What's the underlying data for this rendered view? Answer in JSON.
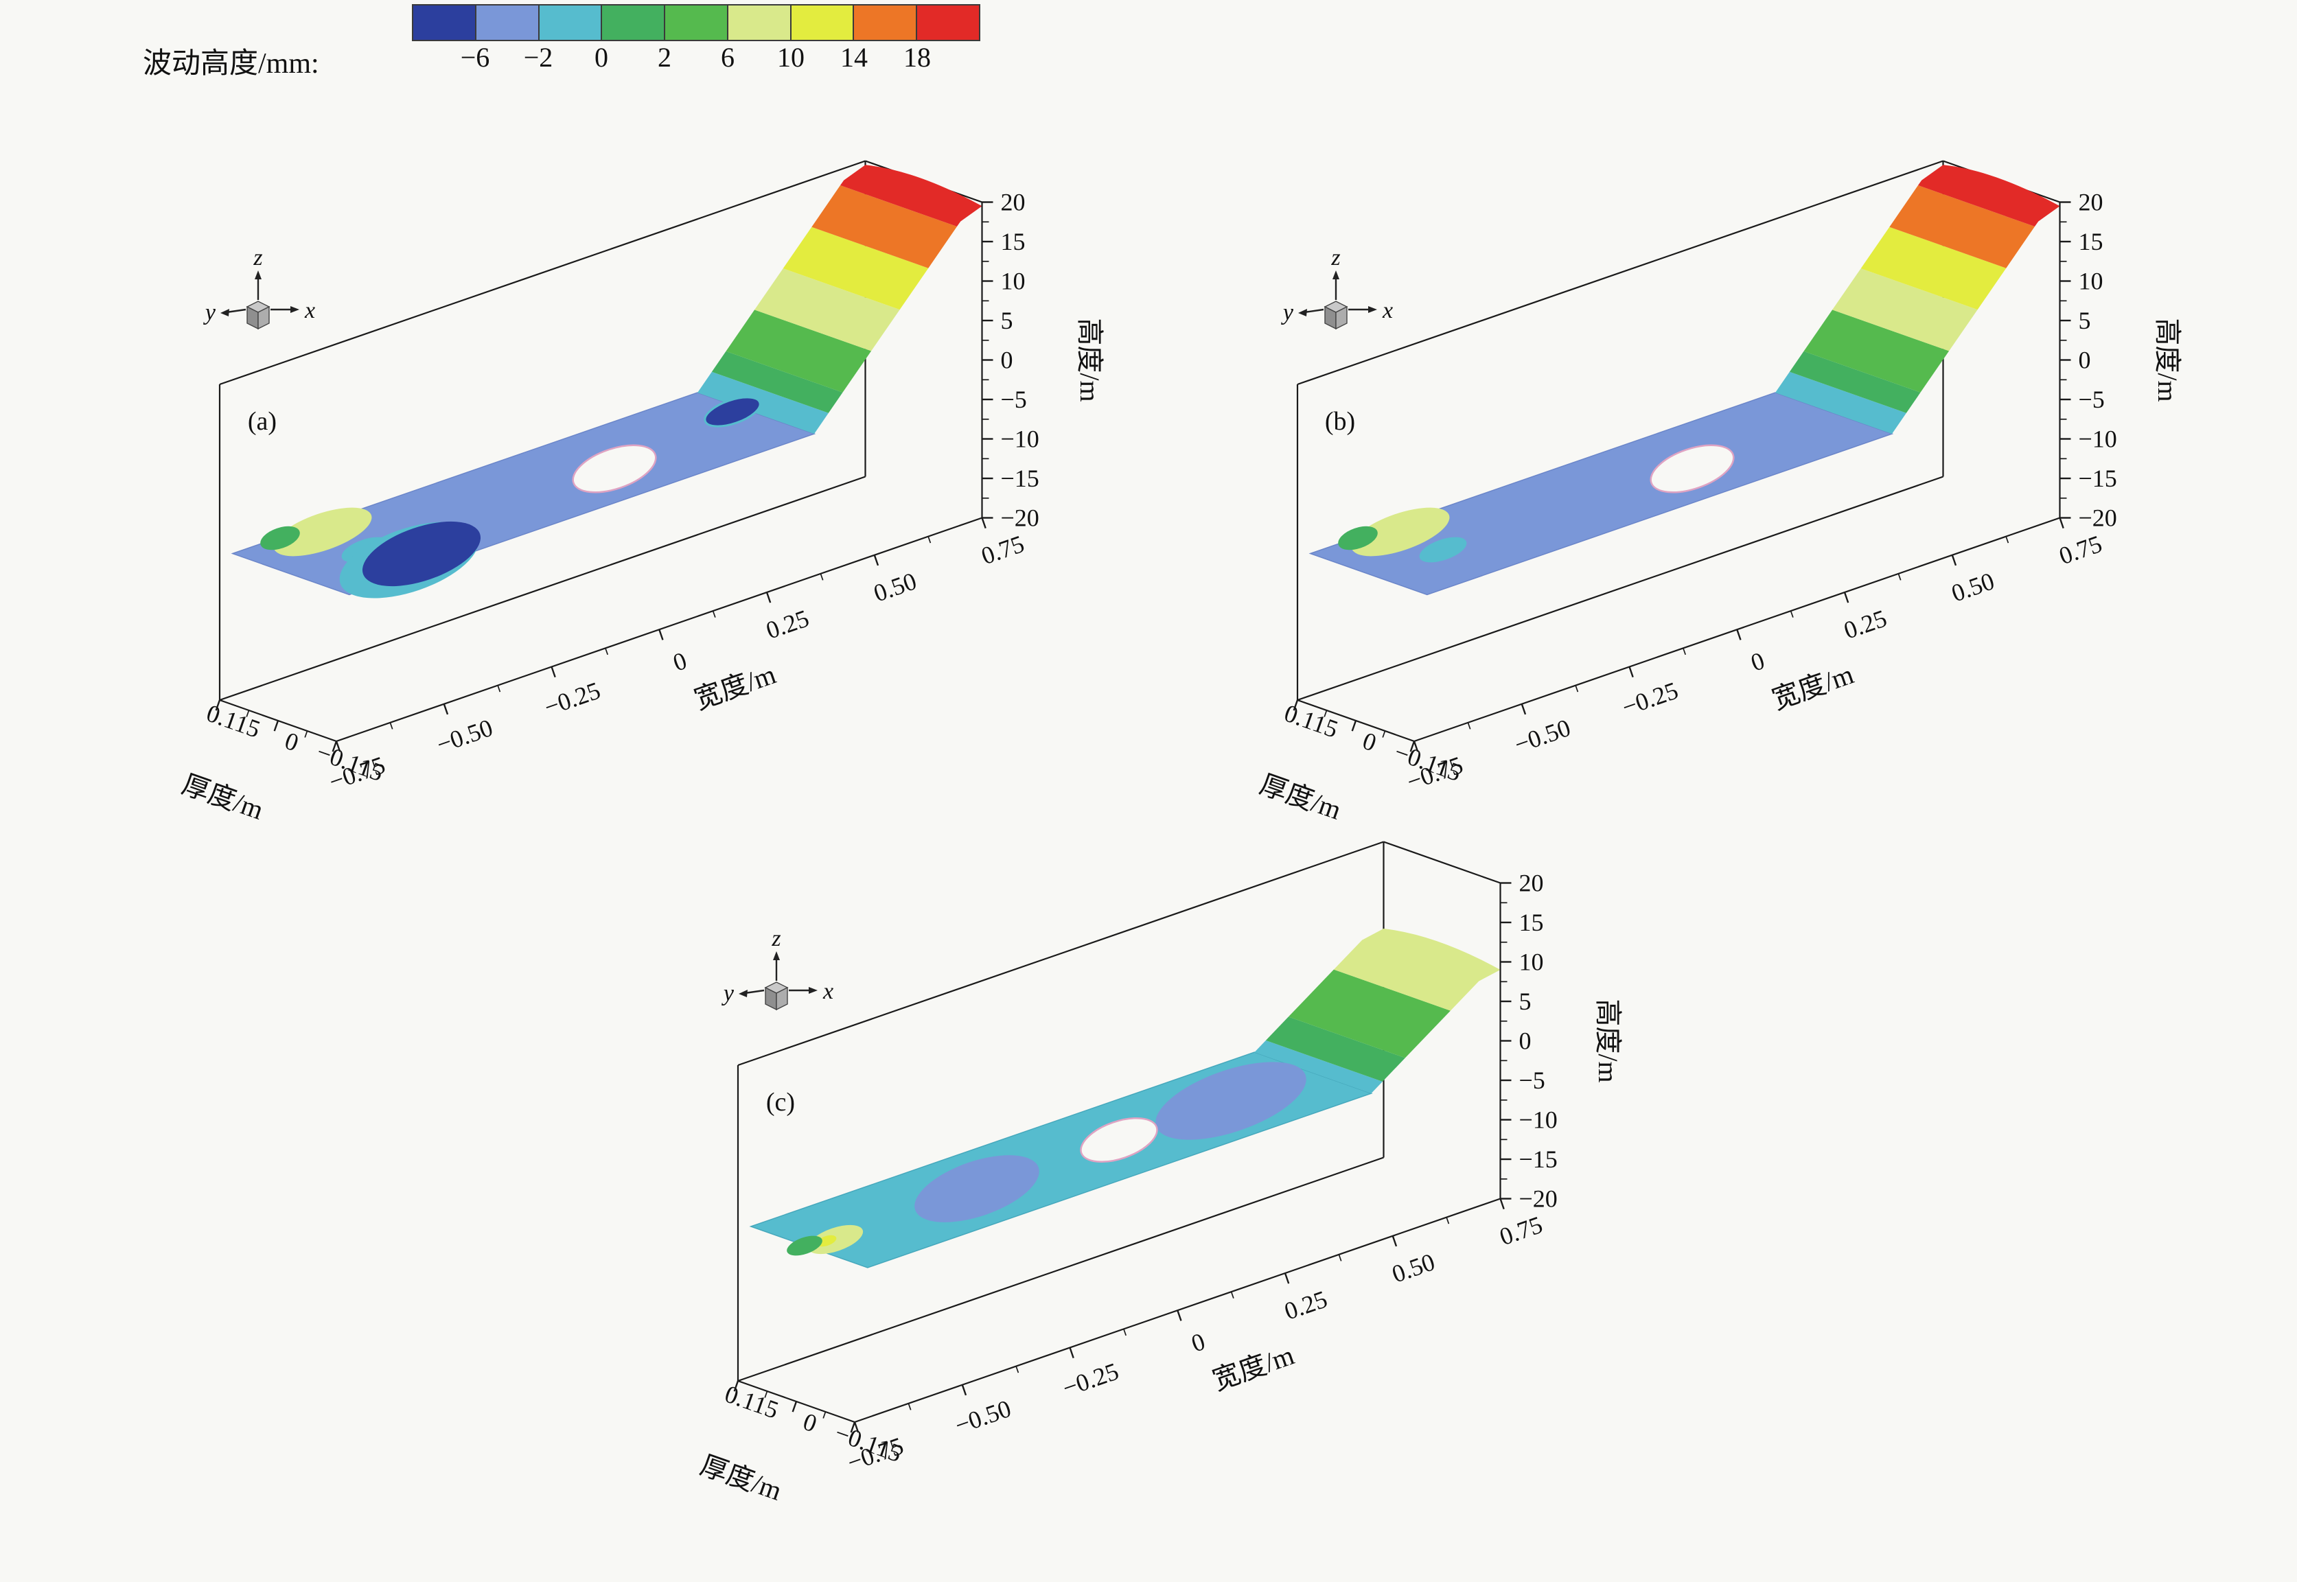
{
  "colorbar": {
    "label": "波动高度/mm:",
    "ticks": [
      "−6",
      "−2",
      "0",
      "2",
      "6",
      "10",
      "14",
      "18"
    ],
    "colors": [
      "#2c3f9e",
      "#7a97d8",
      "#56bcce",
      "#43b05f",
      "#55ba4e",
      "#d9e98b",
      "#e3ec3f",
      "#ed7626",
      "#e22a27"
    ]
  },
  "axes": {
    "x_label": "宽度/m",
    "x_ticks": [
      "−0.75",
      "−0.50",
      "−0.25",
      "0",
      "0.25",
      "0.50",
      "0.75"
    ],
    "y_label": "厚度/m",
    "y_ticks": [
      "0.115",
      "0",
      "−0.115"
    ],
    "z_label": "高度/m",
    "z_ticks": [
      "20",
      "15",
      "10",
      "5",
      "0",
      "−5",
      "−10",
      "−15",
      "−20"
    ]
  },
  "orientation": {
    "x": "x",
    "y": "y",
    "z": "z"
  },
  "subplots": [
    {
      "label": "(a)",
      "position": "top-left"
    },
    {
      "label": "(b)",
      "position": "top-right"
    },
    {
      "label": "(c)",
      "position": "bottom-center"
    }
  ],
  "chart_data": {
    "type": "surface",
    "subplot_count": 3,
    "colorbar": {
      "label": "波动高度/mm",
      "level_boundaries_mm": [
        -6,
        -2,
        0,
        2,
        6,
        10,
        14,
        18
      ],
      "band_colors": [
        "#2c3f9e",
        "#7a97d8",
        "#56bcce",
        "#43b05f",
        "#55ba4e",
        "#d9e98b",
        "#e3ec3f",
        "#ed7626",
        "#e22a27"
      ]
    },
    "x_axis": {
      "label": "宽度/m",
      "range": [
        -0.75,
        0.75
      ],
      "ticks": [
        -0.75,
        -0.5,
        -0.25,
        0,
        0.25,
        0.5,
        0.75
      ]
    },
    "y_axis": {
      "label": "厚度/m",
      "range": [
        -0.115,
        0.115
      ],
      "ticks": [
        0.115,
        0,
        -0.115
      ]
    },
    "z_axis": {
      "label": "高度/m",
      "range": [
        -20,
        20
      ],
      "ticks": [
        20,
        15,
        10,
        5,
        0,
        -5,
        -10,
        -15,
        -20
      ]
    },
    "subplots": [
      {
        "id": "(a)",
        "centerline_x_m": [
          -0.75,
          -0.68,
          -0.6,
          -0.52,
          -0.4,
          -0.2,
          0,
          0.2,
          0.36,
          0.45,
          0.52,
          0.6,
          0.68,
          0.75
        ],
        "centerline_height_mm": [
          7,
          4,
          -2,
          -8,
          -3,
          -2,
          -2,
          -7,
          -1,
          2,
          6,
          11,
          16,
          20
        ],
        "features": [
          "raised pale-green tip at left end",
          "deep trough ≈ −8 mm near x = −0.52",
          "flat blue plate ≈ −3 mm with central hole",
          "dark spot ≈ −7 mm near x = 0.2",
          "steep crest rising to +20 mm at right end"
        ]
      },
      {
        "id": "(b)",
        "centerline_x_m": [
          -0.75,
          -0.68,
          -0.6,
          -0.52,
          -0.4,
          -0.2,
          0,
          0.2,
          0.36,
          0.45,
          0.52,
          0.6,
          0.68,
          0.75
        ],
        "centerline_height_mm": [
          6,
          3,
          0,
          -3,
          -3,
          -2,
          -2,
          -2,
          -1,
          2,
          6,
          11,
          16,
          20
        ],
        "features": [
          "raised pale-green tip at left end",
          "flat blue plate ≈ −3 mm with central hole",
          "steep crest rising to +20 mm at right end"
        ]
      },
      {
        "id": "(c)",
        "centerline_x_m": [
          -0.75,
          -0.68,
          -0.6,
          -0.52,
          -0.4,
          -0.2,
          0,
          0.2,
          0.36,
          0.45,
          0.52,
          0.6,
          0.68,
          0.75
        ],
        "centerline_height_mm": [
          2,
          1,
          -3,
          -2,
          -3,
          -1,
          -1,
          -1,
          -3,
          -1,
          1,
          4,
          7,
          9
        ],
        "features": [
          "small yellow spot at left tip",
          "cyan plate ≈ −1 mm with shallow blue patches and central hole",
          "gentle crest rising to ≈ +9 mm at right end"
        ]
      }
    ]
  }
}
